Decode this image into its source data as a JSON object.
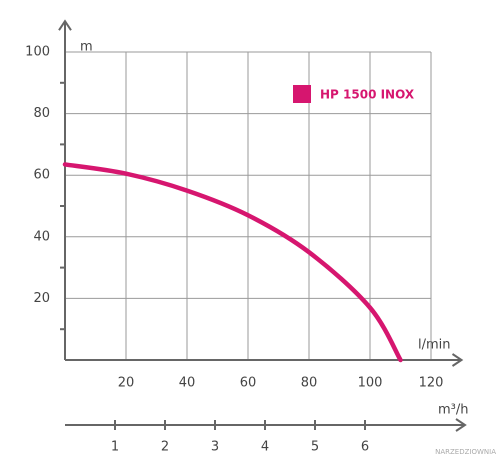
{
  "chart_data": {
    "type": "line",
    "x": [
      0,
      20,
      40,
      60,
      80,
      100,
      110
    ],
    "series": [
      {
        "name": "HP 1500 INOX",
        "color": "#d6166f",
        "values": [
          63.5,
          60.5,
          55,
          47,
          35,
          17,
          0
        ]
      }
    ],
    "xlim": [
      0,
      130
    ],
    "xticks": [
      20,
      40,
      60,
      80,
      100,
      120
    ],
    "ylim": [
      0,
      110
    ],
    "yticks": [
      20,
      40,
      60,
      80,
      100
    ],
    "x_label": "l/min",
    "y_label": "m",
    "x2_label": "m³/h",
    "x2lim": [
      0,
      8
    ],
    "x2ticks": [
      1,
      2,
      3,
      4,
      5,
      6
    ],
    "grid": true,
    "legend": "upper right",
    "watermark": "NARZEDZIOWNIA"
  }
}
